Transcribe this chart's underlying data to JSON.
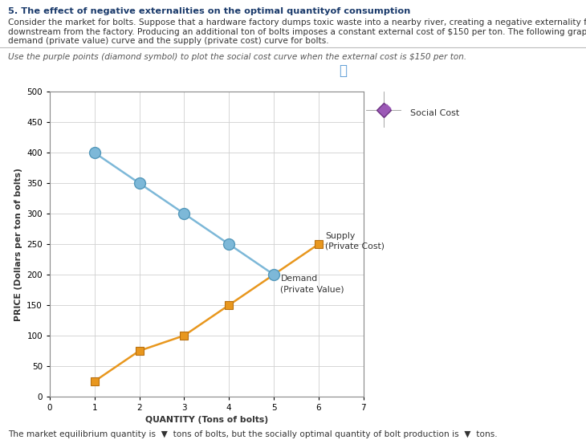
{
  "title": "5. The effect of negative externalities on the optimal quantityof consumption",
  "body_line1": "Consider the market for bolts. Suppose that a hardware factory dumps toxic waste into a nearby river, creating a negative externality for those living",
  "body_line2": "downstream from the factory. Producing an additional ton of bolts imposes a constant external cost of $150 per ton. The following graph shows the",
  "body_line3": "demand (private value) curve and the supply (private cost) curve for bolts.",
  "italic_line": "Use the purple points (diamond symbol) to plot the social cost curve when the external cost is $150 per ton.",
  "bottom_text": "The market equilibrium quantity is  ▼  tons of bolts, but the socially optimal quantity of bolt production is  ▼  tons.",
  "supply_x": [
    1,
    2,
    3,
    4,
    5,
    6
  ],
  "supply_y": [
    25,
    75,
    100,
    150,
    200,
    250
  ],
  "supply_color": "#E8971E",
  "supply_marker": "s",
  "supply_label_line1": "Supply",
  "supply_label_line2": "(Private Cost)",
  "demand_x": [
    1,
    2,
    3,
    4,
    5
  ],
  "demand_y": [
    400,
    350,
    300,
    250,
    200
  ],
  "demand_color": "#7DB8D8",
  "demand_marker": "o",
  "demand_label_line1": "Demand",
  "demand_label_line2": "(Private Value)",
  "social_cost_color": "#9B59B6",
  "social_cost_marker": "D",
  "social_cost_label": "Social Cost",
  "xlabel": "QUANTITY (Tons of bolts)",
  "ylabel": "PRICE (Dollars per ton of bolts)",
  "xlim": [
    0,
    7
  ],
  "ylim": [
    0,
    500
  ],
  "xticks": [
    0,
    1,
    2,
    3,
    4,
    5,
    6,
    7
  ],
  "yticks": [
    0,
    50,
    100,
    150,
    200,
    250,
    300,
    350,
    400,
    450,
    500
  ],
  "bg_color": "#FFFFFF",
  "grid_color": "#D0D0D0",
  "title_color": "#1A3A6B",
  "body_color": "#333333",
  "italic_color": "#555555"
}
